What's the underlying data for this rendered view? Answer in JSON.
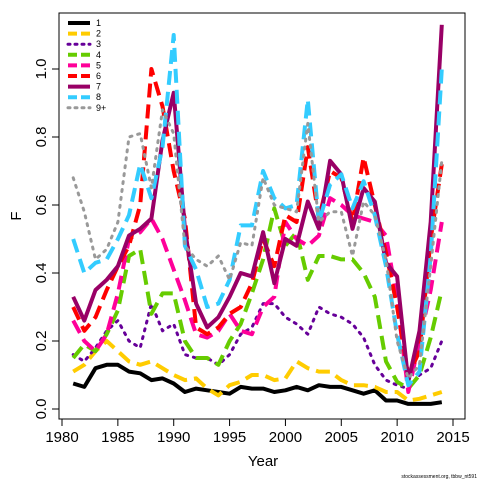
{
  "chart_data": {
    "type": "line",
    "xlabel": "Year",
    "ylabel": "F",
    "xlim": [
      1981,
      2014
    ],
    "ylim": [
      0,
      1.12
    ],
    "xticks": [
      "1980",
      "1985",
      "1990",
      "1995",
      "2000",
      "2005",
      "2010",
      "2015"
    ],
    "yticks": [
      "0.0",
      "0.2",
      "0.4",
      "0.6",
      "0.8",
      "1.0"
    ],
    "legend_position": "top-left",
    "footnote": "stockassessment.org, tbbw_nt591",
    "x": [
      1981,
      1982,
      1983,
      1984,
      1985,
      1986,
      1987,
      1988,
      1989,
      1990,
      1991,
      1992,
      1993,
      1994,
      1995,
      1996,
      1997,
      1998,
      1999,
      2000,
      2001,
      2002,
      2003,
      2004,
      2005,
      2006,
      2007,
      2008,
      2009,
      2010,
      2011,
      2012,
      2013,
      2014
    ],
    "series": [
      {
        "name": "1",
        "color": "#000000",
        "dash": "solid",
        "width": 4,
        "values": [
          0.075,
          0.065,
          0.12,
          0.13,
          0.13,
          0.11,
          0.105,
          0.085,
          0.09,
          0.075,
          0.05,
          0.06,
          0.055,
          0.05,
          0.045,
          0.065,
          0.06,
          0.06,
          0.05,
          0.055,
          0.065,
          0.055,
          0.07,
          0.065,
          0.065,
          0.055,
          0.045,
          0.055,
          0.025,
          0.025,
          0.015,
          0.015,
          0.015,
          0.02
        ]
      },
      {
        "name": "2",
        "color": "#ffcc00",
        "dash": "long",
        "width": 4,
        "values": [
          0.11,
          0.13,
          0.17,
          0.2,
          0.17,
          0.14,
          0.13,
          0.14,
          0.12,
          0.1,
          0.085,
          0.09,
          0.06,
          0.04,
          0.07,
          0.08,
          0.1,
          0.1,
          0.085,
          0.09,
          0.14,
          0.12,
          0.11,
          0.11,
          0.085,
          0.07,
          0.07,
          0.065,
          0.05,
          0.05,
          0.025,
          0.03,
          0.04,
          0.05
        ]
      },
      {
        "name": "3",
        "color": "#660099",
        "dash": "dot",
        "width": 3,
        "values": [
          0.16,
          0.14,
          0.18,
          0.23,
          0.26,
          0.2,
          0.18,
          0.31,
          0.23,
          0.25,
          0.16,
          0.15,
          0.15,
          0.13,
          0.16,
          0.22,
          0.24,
          0.31,
          0.31,
          0.27,
          0.25,
          0.22,
          0.3,
          0.28,
          0.27,
          0.25,
          0.21,
          0.13,
          0.085,
          0.07,
          0.06,
          0.1,
          0.12,
          0.2
        ]
      },
      {
        "name": "4",
        "color": "#66cc00",
        "dash": "long",
        "width": 4,
        "values": [
          0.15,
          0.19,
          0.17,
          0.22,
          0.29,
          0.45,
          0.47,
          0.28,
          0.34,
          0.34,
          0.2,
          0.15,
          0.15,
          0.13,
          0.2,
          0.25,
          0.34,
          0.44,
          0.59,
          0.48,
          0.52,
          0.38,
          0.45,
          0.45,
          0.44,
          0.44,
          0.4,
          0.33,
          0.14,
          0.08,
          0.06,
          0.1,
          0.21,
          0.35
        ]
      },
      {
        "name": "5",
        "color": "#ff0099",
        "dash": "long",
        "width": 4,
        "values": [
          0.26,
          0.2,
          0.17,
          0.22,
          0.34,
          0.5,
          0.52,
          0.56,
          0.5,
          0.41,
          0.32,
          0.22,
          0.21,
          0.23,
          0.28,
          0.23,
          0.22,
          0.3,
          0.33,
          0.55,
          0.5,
          0.48,
          0.51,
          0.62,
          0.6,
          0.57,
          0.56,
          0.55,
          0.51,
          0.32,
          0.05,
          0.2,
          0.35,
          0.55
        ]
      },
      {
        "name": "6",
        "color": "#ff0000",
        "dash": "long",
        "width": 4,
        "values": [
          0.3,
          0.23,
          0.27,
          0.35,
          0.42,
          0.48,
          0.6,
          1.0,
          0.89,
          0.7,
          0.56,
          0.24,
          0.22,
          0.24,
          0.28,
          0.3,
          0.37,
          0.5,
          0.42,
          0.57,
          0.55,
          0.77,
          0.56,
          0.7,
          0.68,
          0.55,
          0.74,
          0.6,
          0.46,
          0.3,
          0.1,
          0.17,
          0.5,
          0.72
        ]
      },
      {
        "name": "7",
        "color": "#990066",
        "dash": "solid",
        "width": 4,
        "values": [
          0.33,
          0.26,
          0.35,
          0.38,
          0.42,
          0.51,
          0.53,
          0.56,
          0.79,
          0.93,
          0.53,
          0.31,
          0.24,
          0.27,
          0.33,
          0.4,
          0.39,
          0.52,
          0.37,
          0.5,
          0.48,
          0.61,
          0.53,
          0.73,
          0.69,
          0.53,
          0.65,
          0.61,
          0.43,
          0.39,
          0.08,
          0.23,
          0.55,
          1.13
        ]
      },
      {
        "name": "8",
        "color": "#33ccff",
        "dash": "long",
        "width": 4,
        "values": [
          0.5,
          0.4,
          0.43,
          0.44,
          0.5,
          0.57,
          0.72,
          0.62,
          0.77,
          1.1,
          0.48,
          0.41,
          0.3,
          0.31,
          0.38,
          0.54,
          0.54,
          0.7,
          0.62,
          0.59,
          0.6,
          0.91,
          0.55,
          0.66,
          0.69,
          0.59,
          0.67,
          0.57,
          0.42,
          0.22,
          0.07,
          0.11,
          0.45,
          1.0
        ]
      },
      {
        "name": "9+",
        "color": "#999999",
        "dash": "dot",
        "width": 3,
        "values": [
          0.68,
          0.58,
          0.44,
          0.47,
          0.55,
          0.8,
          0.81,
          0.65,
          0.88,
          0.81,
          0.48,
          0.44,
          0.42,
          0.45,
          0.38,
          0.49,
          0.48,
          0.68,
          0.6,
          0.59,
          0.58,
          0.84,
          0.55,
          0.58,
          0.58,
          0.45,
          0.61,
          0.57,
          0.44,
          0.2,
          0.09,
          0.13,
          0.42,
          0.73
        ]
      }
    ]
  }
}
